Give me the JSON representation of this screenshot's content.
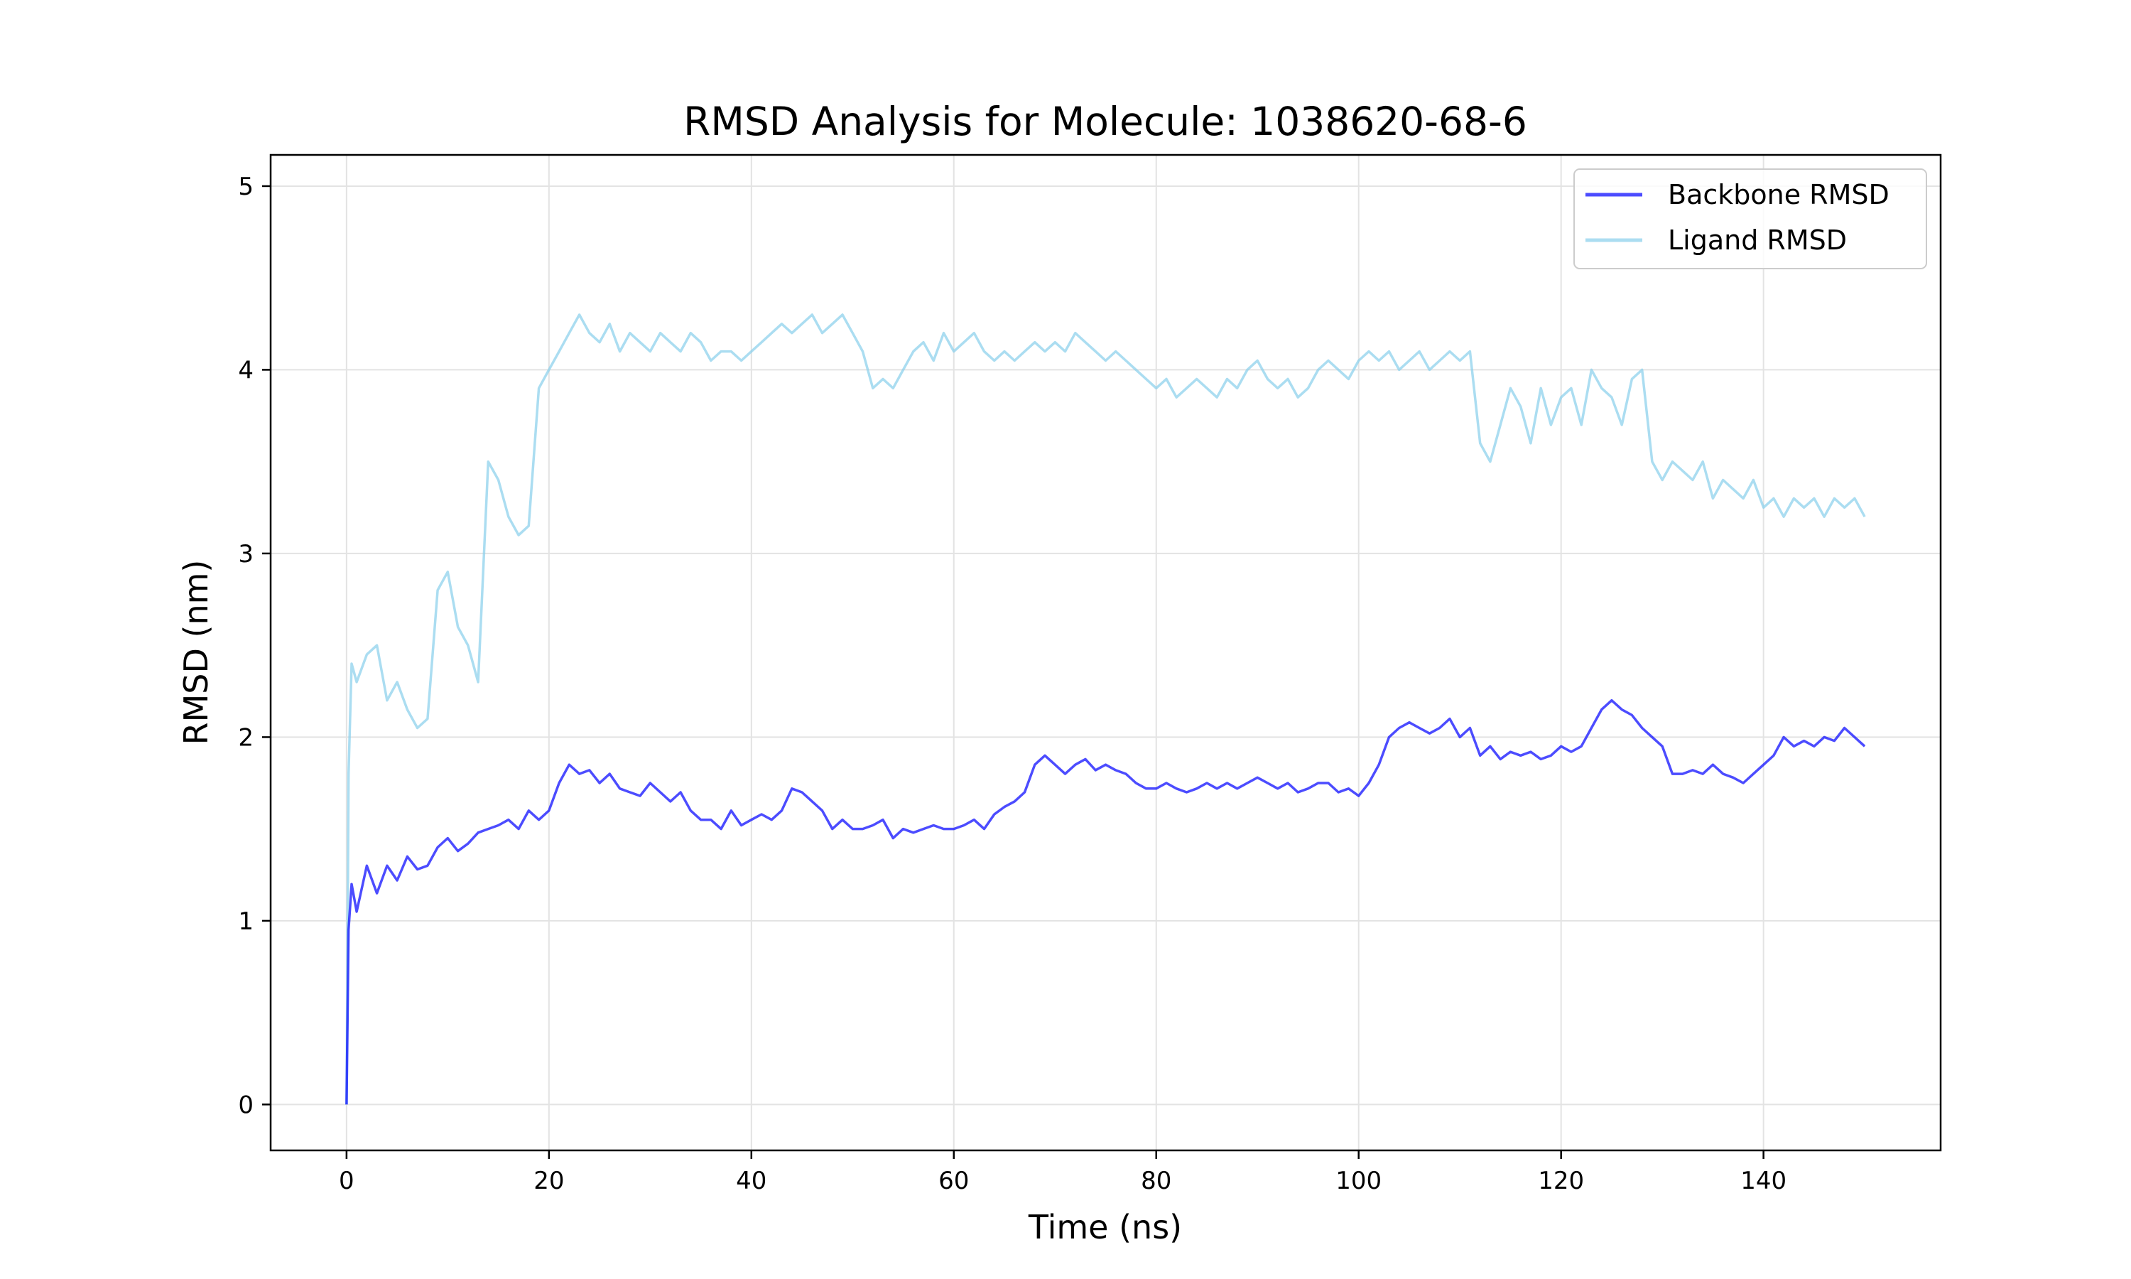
{
  "chart_data": {
    "type": "line",
    "title": "RMSD Analysis for Molecule: 1038620-68-6",
    "xlabel": "Time (ns)",
    "ylabel": "RMSD (nm)",
    "xlim": [
      -7.5,
      157.5
    ],
    "ylim": [
      -0.25,
      5.17
    ],
    "xticks": [
      0,
      20,
      40,
      60,
      80,
      100,
      120,
      140
    ],
    "yticks": [
      0,
      1,
      2,
      3,
      4,
      5
    ],
    "grid": true,
    "legend_position": "top-right",
    "series": [
      {
        "name": "Backbone RMSD",
        "color": "#0000ff",
        "opacity": 0.7,
        "points": [
          [
            0,
            0.0
          ],
          [
            0.2,
            0.95
          ],
          [
            0.5,
            1.2
          ],
          [
            1,
            1.05
          ],
          [
            2,
            1.3
          ],
          [
            3,
            1.15
          ],
          [
            4,
            1.3
          ],
          [
            5,
            1.22
          ],
          [
            6,
            1.35
          ],
          [
            7,
            1.28
          ],
          [
            8,
            1.3
          ],
          [
            9,
            1.4
          ],
          [
            10,
            1.45
          ],
          [
            11,
            1.38
          ],
          [
            12,
            1.42
          ],
          [
            13,
            1.48
          ],
          [
            14,
            1.5
          ],
          [
            15,
            1.52
          ],
          [
            16,
            1.55
          ],
          [
            17,
            1.5
          ],
          [
            18,
            1.6
          ],
          [
            19,
            1.55
          ],
          [
            20,
            1.6
          ],
          [
            21,
            1.75
          ],
          [
            22,
            1.85
          ],
          [
            23,
            1.8
          ],
          [
            24,
            1.82
          ],
          [
            25,
            1.75
          ],
          [
            26,
            1.8
          ],
          [
            27,
            1.72
          ],
          [
            28,
            1.7
          ],
          [
            29,
            1.68
          ],
          [
            30,
            1.75
          ],
          [
            31,
            1.7
          ],
          [
            32,
            1.65
          ],
          [
            33,
            1.7
          ],
          [
            34,
            1.6
          ],
          [
            35,
            1.55
          ],
          [
            36,
            1.55
          ],
          [
            37,
            1.5
          ],
          [
            38,
            1.6
          ],
          [
            39,
            1.52
          ],
          [
            40,
            1.55
          ],
          [
            41,
            1.58
          ],
          [
            42,
            1.55
          ],
          [
            43,
            1.6
          ],
          [
            44,
            1.72
          ],
          [
            45,
            1.7
          ],
          [
            46,
            1.65
          ],
          [
            47,
            1.6
          ],
          [
            48,
            1.5
          ],
          [
            49,
            1.55
          ],
          [
            50,
            1.5
          ],
          [
            51,
            1.5
          ],
          [
            52,
            1.52
          ],
          [
            53,
            1.55
          ],
          [
            54,
            1.45
          ],
          [
            55,
            1.5
          ],
          [
            56,
            1.48
          ],
          [
            57,
            1.5
          ],
          [
            58,
            1.52
          ],
          [
            59,
            1.5
          ],
          [
            60,
            1.5
          ],
          [
            61,
            1.52
          ],
          [
            62,
            1.55
          ],
          [
            63,
            1.5
          ],
          [
            64,
            1.58
          ],
          [
            65,
            1.62
          ],
          [
            66,
            1.65
          ],
          [
            67,
            1.7
          ],
          [
            68,
            1.85
          ],
          [
            69,
            1.9
          ],
          [
            70,
            1.85
          ],
          [
            71,
            1.8
          ],
          [
            72,
            1.85
          ],
          [
            73,
            1.88
          ],
          [
            74,
            1.82
          ],
          [
            75,
            1.85
          ],
          [
            76,
            1.82
          ],
          [
            77,
            1.8
          ],
          [
            78,
            1.75
          ],
          [
            79,
            1.72
          ],
          [
            80,
            1.72
          ],
          [
            81,
            1.75
          ],
          [
            82,
            1.72
          ],
          [
            83,
            1.7
          ],
          [
            84,
            1.72
          ],
          [
            85,
            1.75
          ],
          [
            86,
            1.72
          ],
          [
            87,
            1.75
          ],
          [
            88,
            1.72
          ],
          [
            89,
            1.75
          ],
          [
            90,
            1.78
          ],
          [
            91,
            1.75
          ],
          [
            92,
            1.72
          ],
          [
            93,
            1.75
          ],
          [
            94,
            1.7
          ],
          [
            95,
            1.72
          ],
          [
            96,
            1.75
          ],
          [
            97,
            1.75
          ],
          [
            98,
            1.7
          ],
          [
            99,
            1.72
          ],
          [
            100,
            1.68
          ],
          [
            101,
            1.75
          ],
          [
            102,
            1.85
          ],
          [
            103,
            2.0
          ],
          [
            104,
            2.05
          ],
          [
            105,
            2.08
          ],
          [
            106,
            2.05
          ],
          [
            107,
            2.02
          ],
          [
            108,
            2.05
          ],
          [
            109,
            2.1
          ],
          [
            110,
            2.0
          ],
          [
            111,
            2.05
          ],
          [
            112,
            1.9
          ],
          [
            113,
            1.95
          ],
          [
            114,
            1.88
          ],
          [
            115,
            1.92
          ],
          [
            116,
            1.9
          ],
          [
            117,
            1.92
          ],
          [
            118,
            1.88
          ],
          [
            119,
            1.9
          ],
          [
            120,
            1.95
          ],
          [
            121,
            1.92
          ],
          [
            122,
            1.95
          ],
          [
            123,
            2.05
          ],
          [
            124,
            2.15
          ],
          [
            125,
            2.2
          ],
          [
            126,
            2.15
          ],
          [
            127,
            2.12
          ],
          [
            128,
            2.05
          ],
          [
            129,
            2.0
          ],
          [
            130,
            1.95
          ],
          [
            131,
            1.8
          ],
          [
            132,
            1.8
          ],
          [
            133,
            1.82
          ],
          [
            134,
            1.8
          ],
          [
            135,
            1.85
          ],
          [
            136,
            1.8
          ],
          [
            137,
            1.78
          ],
          [
            138,
            1.75
          ],
          [
            139,
            1.8
          ],
          [
            140,
            1.85
          ],
          [
            141,
            1.9
          ],
          [
            142,
            2.0
          ],
          [
            143,
            1.95
          ],
          [
            144,
            1.98
          ],
          [
            145,
            1.95
          ],
          [
            146,
            2.0
          ],
          [
            147,
            1.98
          ],
          [
            148,
            2.05
          ],
          [
            149,
            2.0
          ],
          [
            150,
            1.95
          ]
        ]
      },
      {
        "name": "Ligand RMSD",
        "color": "#87ceeb",
        "opacity": 0.7,
        "points": [
          [
            0,
            0.0
          ],
          [
            0.2,
            1.8
          ],
          [
            0.5,
            2.4
          ],
          [
            1,
            2.3
          ],
          [
            2,
            2.45
          ],
          [
            3,
            2.5
          ],
          [
            4,
            2.2
          ],
          [
            5,
            2.3
          ],
          [
            6,
            2.15
          ],
          [
            7,
            2.05
          ],
          [
            8,
            2.1
          ],
          [
            9,
            2.8
          ],
          [
            10,
            2.9
          ],
          [
            11,
            2.6
          ],
          [
            12,
            2.5
          ],
          [
            13,
            2.3
          ],
          [
            14,
            3.5
          ],
          [
            15,
            3.4
          ],
          [
            16,
            3.2
          ],
          [
            17,
            3.1
          ],
          [
            18,
            3.15
          ],
          [
            19,
            3.9
          ],
          [
            20,
            4.0
          ],
          [
            21,
            4.1
          ],
          [
            22,
            4.2
          ],
          [
            23,
            4.3
          ],
          [
            24,
            4.2
          ],
          [
            25,
            4.15
          ],
          [
            26,
            4.25
          ],
          [
            27,
            4.1
          ],
          [
            28,
            4.2
          ],
          [
            29,
            4.15
          ],
          [
            30,
            4.1
          ],
          [
            31,
            4.2
          ],
          [
            32,
            4.15
          ],
          [
            33,
            4.1
          ],
          [
            34,
            4.2
          ],
          [
            35,
            4.15
          ],
          [
            36,
            4.05
          ],
          [
            37,
            4.1
          ],
          [
            38,
            4.1
          ],
          [
            39,
            4.05
          ],
          [
            40,
            4.1
          ],
          [
            41,
            4.15
          ],
          [
            42,
            4.2
          ],
          [
            43,
            4.25
          ],
          [
            44,
            4.2
          ],
          [
            45,
            4.25
          ],
          [
            46,
            4.3
          ],
          [
            47,
            4.2
          ],
          [
            48,
            4.25
          ],
          [
            49,
            4.3
          ],
          [
            50,
            4.2
          ],
          [
            51,
            4.1
          ],
          [
            52,
            3.9
          ],
          [
            53,
            3.95
          ],
          [
            54,
            3.9
          ],
          [
            55,
            4.0
          ],
          [
            56,
            4.1
          ],
          [
            57,
            4.15
          ],
          [
            58,
            4.05
          ],
          [
            59,
            4.2
          ],
          [
            60,
            4.1
          ],
          [
            61,
            4.15
          ],
          [
            62,
            4.2
          ],
          [
            63,
            4.1
          ],
          [
            64,
            4.05
          ],
          [
            65,
            4.1
          ],
          [
            66,
            4.05
          ],
          [
            67,
            4.1
          ],
          [
            68,
            4.15
          ],
          [
            69,
            4.1
          ],
          [
            70,
            4.15
          ],
          [
            71,
            4.1
          ],
          [
            72,
            4.2
          ],
          [
            73,
            4.15
          ],
          [
            74,
            4.1
          ],
          [
            75,
            4.05
          ],
          [
            76,
            4.1
          ],
          [
            77,
            4.05
          ],
          [
            78,
            4.0
          ],
          [
            79,
            3.95
          ],
          [
            80,
            3.9
          ],
          [
            81,
            3.95
          ],
          [
            82,
            3.85
          ],
          [
            83,
            3.9
          ],
          [
            84,
            3.95
          ],
          [
            85,
            3.9
          ],
          [
            86,
            3.85
          ],
          [
            87,
            3.95
          ],
          [
            88,
            3.9
          ],
          [
            89,
            4.0
          ],
          [
            90,
            4.05
          ],
          [
            91,
            3.95
          ],
          [
            92,
            3.9
          ],
          [
            93,
            3.95
          ],
          [
            94,
            3.85
          ],
          [
            95,
            3.9
          ],
          [
            96,
            4.0
          ],
          [
            97,
            4.05
          ],
          [
            98,
            4.0
          ],
          [
            99,
            3.95
          ],
          [
            100,
            4.05
          ],
          [
            101,
            4.1
          ],
          [
            102,
            4.05
          ],
          [
            103,
            4.1
          ],
          [
            104,
            4.0
          ],
          [
            105,
            4.05
          ],
          [
            106,
            4.1
          ],
          [
            107,
            4.0
          ],
          [
            108,
            4.05
          ],
          [
            109,
            4.1
          ],
          [
            110,
            4.05
          ],
          [
            111,
            4.1
          ],
          [
            112,
            3.6
          ],
          [
            113,
            3.5
          ],
          [
            114,
            3.7
          ],
          [
            115,
            3.9
          ],
          [
            116,
            3.8
          ],
          [
            117,
            3.6
          ],
          [
            118,
            3.9
          ],
          [
            119,
            3.7
          ],
          [
            120,
            3.85
          ],
          [
            121,
            3.9
          ],
          [
            122,
            3.7
          ],
          [
            123,
            4.0
          ],
          [
            124,
            3.9
          ],
          [
            125,
            3.85
          ],
          [
            126,
            3.7
          ],
          [
            127,
            3.95
          ],
          [
            128,
            4.0
          ],
          [
            129,
            3.5
          ],
          [
            130,
            3.4
          ],
          [
            131,
            3.5
          ],
          [
            132,
            3.45
          ],
          [
            133,
            3.4
          ],
          [
            134,
            3.5
          ],
          [
            135,
            3.3
          ],
          [
            136,
            3.4
          ],
          [
            137,
            3.35
          ],
          [
            138,
            3.3
          ],
          [
            139,
            3.4
          ],
          [
            140,
            3.25
          ],
          [
            141,
            3.3
          ],
          [
            142,
            3.2
          ],
          [
            143,
            3.3
          ],
          [
            144,
            3.25
          ],
          [
            145,
            3.3
          ],
          [
            146,
            3.2
          ],
          [
            147,
            3.3
          ],
          [
            148,
            3.25
          ],
          [
            149,
            3.3
          ],
          [
            150,
            3.2
          ]
        ]
      }
    ]
  }
}
